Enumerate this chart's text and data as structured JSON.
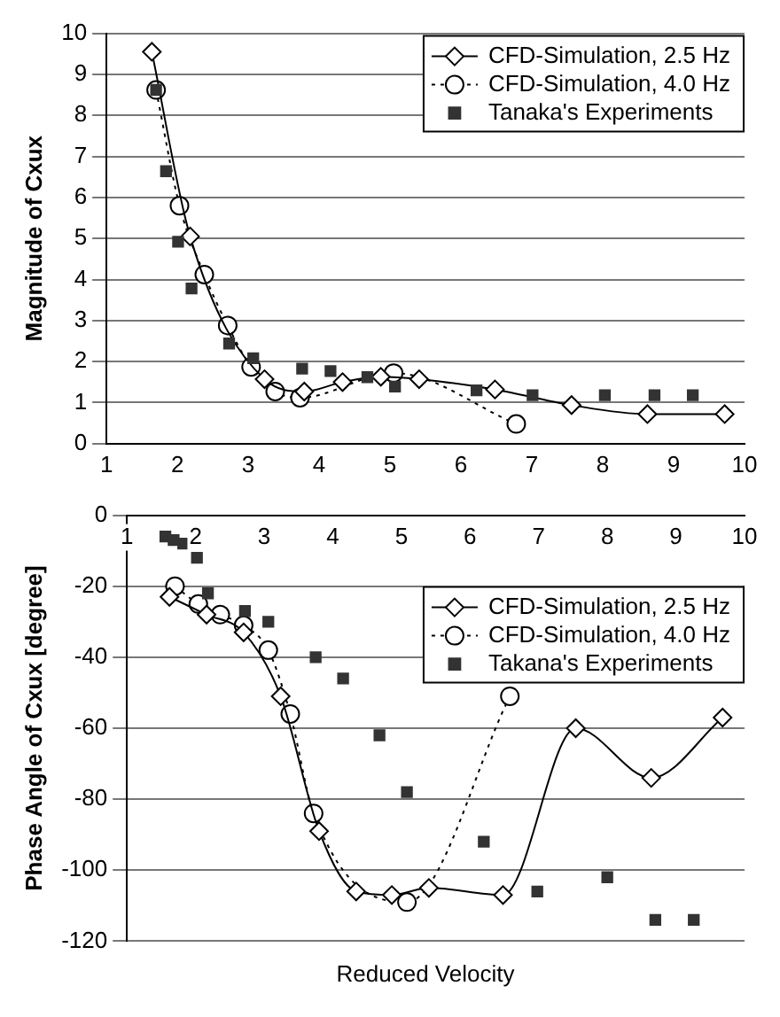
{
  "chart_data": [
    {
      "type": "line",
      "ylabel": "Magnitude of Cxux",
      "xlim": [
        1,
        10
      ],
      "xticks": [
        1,
        2,
        3,
        4,
        5,
        6,
        7,
        8,
        9,
        10
      ],
      "ylim": [
        0,
        10
      ],
      "yticks": [
        0,
        1,
        2,
        3,
        4,
        5,
        6,
        7,
        8,
        9,
        10
      ],
      "grid": "y",
      "legend": "top right",
      "series": [
        {
          "name": "CFD-Simulation, 2.5 Hz",
          "type": "line",
          "marker": "diamond",
          "line_style": "solid",
          "color": "#000000",
          "x": [
            1.64,
            2.18,
            3.23,
            3.79,
            4.33,
            4.87,
            5.41,
            6.48,
            7.56,
            8.63,
            9.72
          ],
          "values": [
            9.55,
            5.05,
            1.57,
            1.27,
            1.5,
            1.63,
            1.57,
            1.32,
            0.94,
            0.72,
            0.72
          ]
        },
        {
          "name": "CFD-Simulation, 4.0 Hz",
          "type": "line",
          "marker": "circle",
          "line_style": "dotted",
          "color": "#000000",
          "x": [
            1.7,
            2.03,
            2.38,
            2.71,
            3.04,
            3.38,
            3.73,
            5.05,
            6.78
          ],
          "values": [
            8.62,
            5.8,
            4.12,
            2.88,
            1.87,
            1.27,
            1.12,
            1.72,
            0.48
          ]
        },
        {
          "name": "Tanaka's Experiments",
          "type": "scatter",
          "marker": "square",
          "color": "#333333",
          "x": [
            1.7,
            1.84,
            2.01,
            2.2,
            2.73,
            3.07,
            3.76,
            4.16,
            4.68,
            5.07,
            6.22,
            7.01,
            8.03,
            8.73,
            9.27
          ],
          "values": [
            8.62,
            6.64,
            4.92,
            3.78,
            2.44,
            2.08,
            1.83,
            1.77,
            1.62,
            1.39,
            1.3,
            1.18,
            1.18,
            1.18,
            1.18
          ]
        }
      ]
    },
    {
      "type": "line",
      "xlabel": "Reduced Velocity",
      "ylabel": "Phase Angle of Cxux [degree]",
      "xlim": [
        1,
        10
      ],
      "xticks": [
        1,
        2,
        3,
        4,
        5,
        6,
        7,
        8,
        9,
        10
      ],
      "ylim": [
        -120,
        0
      ],
      "yticks": [
        -120,
        -100,
        -80,
        -60,
        -40,
        -20,
        0
      ],
      "grid": "y",
      "legend": "top right",
      "series": [
        {
          "name": "CFD-Simulation, 2.5 Hz",
          "type": "line",
          "marker": "diamond",
          "line_style": "solid",
          "color": "#000000",
          "x": [
            1.62,
            2.16,
            2.7,
            3.24,
            3.8,
            4.34,
            4.86,
            5.4,
            6.48,
            7.54,
            8.64,
            9.68
          ],
          "values": [
            -23,
            -28,
            -33,
            -51,
            -89,
            -106,
            -107,
            -105,
            -107,
            -60,
            -74,
            -57
          ]
        },
        {
          "name": "CFD-Simulation, 4.0 Hz",
          "type": "line",
          "marker": "circle",
          "line_style": "dotted",
          "color": "#000000",
          "x": [
            1.7,
            2.04,
            2.36,
            2.7,
            3.06,
            3.38,
            3.72,
            5.08,
            6.58
          ],
          "values": [
            -20,
            -25,
            -28,
            -31,
            -38,
            -56,
            -84,
            -109,
            -51
          ]
        },
        {
          "name": "Takana's Experiments",
          "type": "scatter",
          "marker": "square",
          "color": "#333333",
          "x": [
            1.56,
            1.68,
            1.82,
            2.02,
            2.18,
            2.72,
            3.06,
            3.75,
            4.15,
            4.68,
            5.08,
            6.2,
            6.98,
            8.0,
            8.7,
            9.26
          ],
          "values": [
            -6,
            -7,
            -8,
            -12,
            -22,
            -27,
            -30,
            -40,
            -46,
            -62,
            -78,
            -92,
            -106,
            -102,
            -114,
            -114
          ]
        }
      ]
    }
  ]
}
